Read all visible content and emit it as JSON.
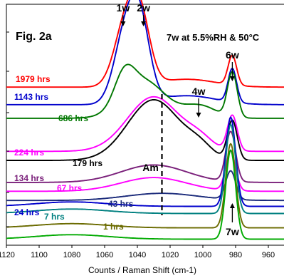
{
  "chart_data": {
    "type": "line",
    "figure_label": "Fig. 2a",
    "condition_label": "7w at 5.5%RH & 50°C",
    "xlabel": "Counts / Raman Shift (cm-1)",
    "ylabel": "",
    "x_reversed": true,
    "xlim": [
      1120,
      950
    ],
    "x_ticks": [
      1120,
      1100,
      1080,
      1060,
      1040,
      1020,
      1000,
      980,
      960
    ],
    "grid": false,
    "peaks": [
      {
        "name": "1w",
        "x": 1047
      },
      {
        "name": "2w",
        "x": 1038
      },
      {
        "name": "4w",
        "x": 1000
      },
      {
        "name": "6w",
        "x": 982
      },
      {
        "name": "7w",
        "x": 982
      }
    ],
    "amorphous": {
      "name": "Am",
      "x": 1025
    },
    "series": [
      {
        "name": "1979 hrs",
        "color": "#ff0000",
        "baseline": 125,
        "shape": "w12",
        "amp": 92
      },
      {
        "name": "1143 hrs",
        "color": "#0000cc",
        "baseline": 150,
        "shape": "w12",
        "amp": 105
      },
      {
        "name": "686 hrs",
        "color": "#007700",
        "baseline": 168,
        "shape": "mixed_am_w",
        "amp": 70
      },
      {
        "name": "224 hrs",
        "color": "#ff00ff",
        "baseline": 215,
        "shape": "am_w6",
        "amp": 90
      },
      {
        "name": "179 hrs",
        "color": "#000000",
        "baseline": 228,
        "shape": "am_w6",
        "amp": 100
      },
      {
        "name": "134 hrs",
        "color": "#7a1f7a",
        "baseline": 258,
        "shape": "am_w7",
        "amp": 70
      },
      {
        "name": "67 hrs",
        "color": "#ff00ff",
        "baseline": 270,
        "shape": "am_w7",
        "amp": 55
      },
      {
        "name": "43 hrs",
        "color": "#1a2a7a",
        "baseline": 282,
        "shape": "am_w7_small",
        "amp": 40
      },
      {
        "name": "24 hrs",
        "color": "#0000cc",
        "baseline": 292,
        "shape": "w7",
        "amp": 125
      },
      {
        "name": "7 hrs",
        "color": "#008080",
        "baseline": 302,
        "shape": "w7",
        "amp": 125
      },
      {
        "name": "1 hrs",
        "color": "#6b6b00",
        "baseline": 322,
        "shape": "w7",
        "amp": 118
      },
      {
        "name": "",
        "color": "#00aa00",
        "baseline": 338,
        "shape": "w7",
        "amp": 125
      }
    ]
  }
}
